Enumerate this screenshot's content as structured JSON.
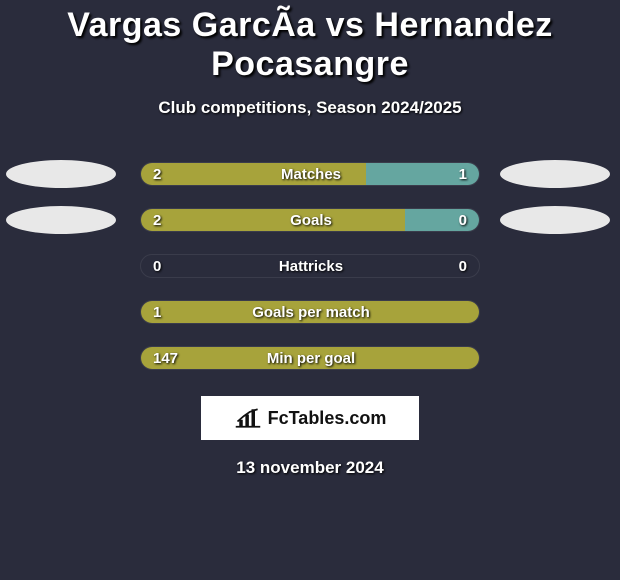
{
  "header": {
    "title": "Vargas GarcÃa vs Hernandez Pocasangre",
    "subtitle": "Club competitions, Season 2024/2025"
  },
  "colors": {
    "left": "#a7a33b",
    "right": "#65a6a0",
    "track_border": "rgba(255,255,255,0.08)",
    "avatar": "#e8e8e8",
    "background": "#2a2c3c"
  },
  "avatars": {
    "row0": {
      "left": true,
      "right": true
    },
    "row1": {
      "left": true,
      "right": true
    },
    "row2": {
      "left": false,
      "right": false
    },
    "row3": {
      "left": false,
      "right": false
    },
    "row4": {
      "left": false,
      "right": false
    }
  },
  "stats": [
    {
      "label": "Matches",
      "left_value": "2",
      "right_value": "1",
      "left_pct": 66.6,
      "right_pct": 33.4
    },
    {
      "label": "Goals",
      "left_value": "2",
      "right_value": "0",
      "left_pct": 78,
      "right_pct": 22
    },
    {
      "label": "Hattricks",
      "left_value": "0",
      "right_value": "0",
      "left_pct": 0,
      "right_pct": 0
    },
    {
      "label": "Goals per match",
      "left_value": "1",
      "right_value": "",
      "left_pct": 100,
      "right_pct": 0
    },
    {
      "label": "Min per goal",
      "left_value": "147",
      "right_value": "",
      "left_pct": 100,
      "right_pct": 0
    }
  ],
  "branding": {
    "site": "FcTables.com"
  },
  "footer": {
    "date": "13 november 2024"
  }
}
